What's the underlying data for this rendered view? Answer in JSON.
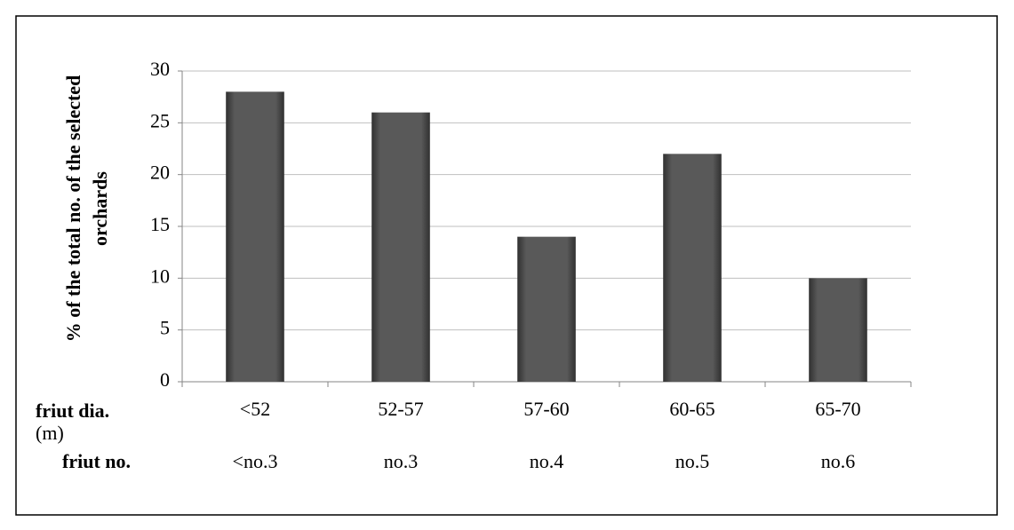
{
  "chart_data": {
    "type": "bar",
    "ylabel_lines": [
      "%  of the total no. of the selected",
      "orchards"
    ],
    "xlabel_lines": [
      "friut dia.",
      "(m)"
    ],
    "second_row_label": "friut no.",
    "categories": [
      "<52",
      "52-57",
      "57-60",
      "60-65",
      "65-70"
    ],
    "second_row": [
      "<no.3",
      "no.3",
      "no.4",
      "no.5",
      "no.6"
    ],
    "values": [
      28,
      26,
      14,
      22,
      10
    ],
    "color": "#595959",
    "ylim": [
      0,
      30
    ],
    "yticks": [
      0,
      5,
      10,
      15,
      20,
      25,
      30
    ],
    "grid": true
  }
}
